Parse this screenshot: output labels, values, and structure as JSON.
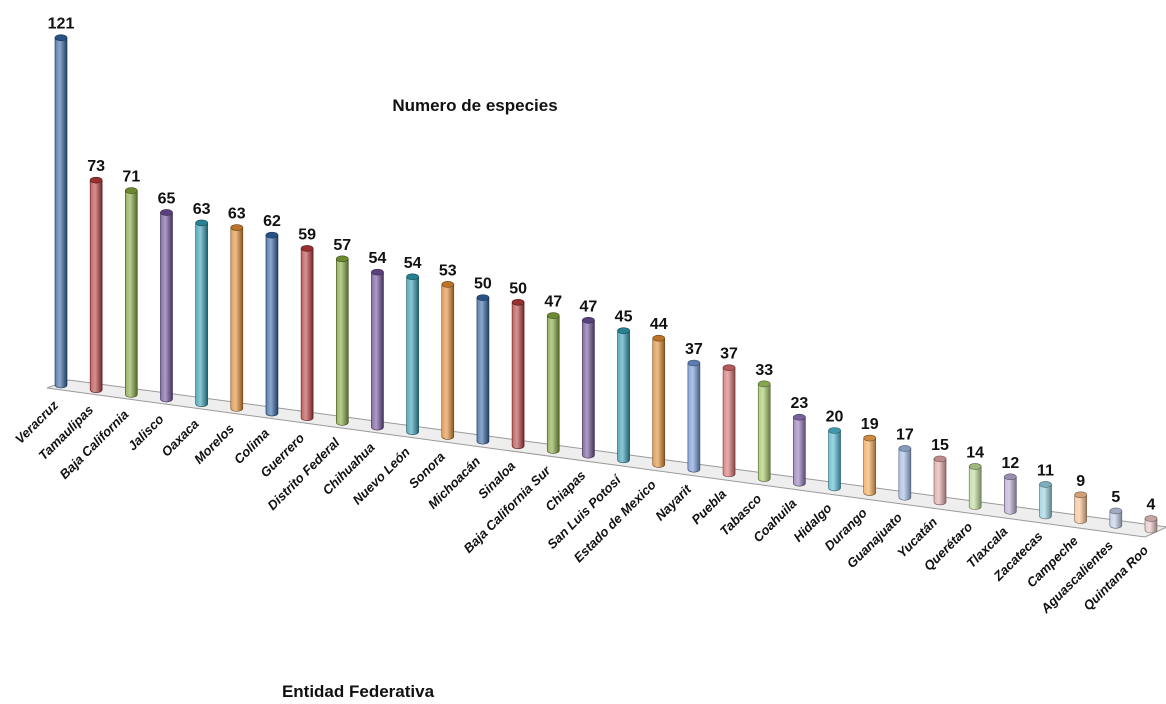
{
  "chart_data": {
    "type": "bar",
    "title": "Numero de especies",
    "xlabel": "Entidad Federativa",
    "ylabel": "",
    "categories": [
      "Veracruz",
      "Tamaulipas",
      "Baja California",
      "Jalisco",
      "Oaxaca",
      "Morelos",
      "Colima",
      "Guerrero",
      "Distrito Federal",
      "Chihuahua",
      "Nuevo León",
      "Sonora",
      "Michoacán",
      "Sinaloa",
      "Baja California Sur",
      "Chiapas",
      "San Luis Potosí",
      "Estado de Mexico",
      "Nayarit",
      "Puebla",
      "Tabasco",
      "Coahuila",
      "Hidalgo",
      "Durango",
      "Guanajuato",
      "Yucatán",
      "Querétaro",
      "Tlaxcala",
      "Zacatecas",
      "Campeche",
      "Aguascalientes",
      "Quintana Roo"
    ],
    "values": [
      121,
      73,
      71,
      65,
      63,
      63,
      62,
      59,
      57,
      54,
      54,
      53,
      50,
      50,
      47,
      47,
      45,
      44,
      37,
      37,
      33,
      23,
      20,
      19,
      17,
      15,
      14,
      12,
      11,
      9,
      5,
      4
    ],
    "colors": [
      "#2f5f9e",
      "#b3393a",
      "#7ea23a",
      "#6a4b93",
      "#2f97ad",
      "#dc8730",
      "#2f5f9e",
      "#b3393a",
      "#7ea23a",
      "#6a4b93",
      "#2f97ad",
      "#dc8730",
      "#2f5f9e",
      "#b3393a",
      "#7ea23a",
      "#6a4b93",
      "#2f97ad",
      "#dc8730",
      "#6e92cf",
      "#d46a6a",
      "#9fc35f",
      "#8e73b5",
      "#4db3cc",
      "#f3a450",
      "#9db7e0",
      "#e0a3a3",
      "#bcd694",
      "#b6a8cf",
      "#94cddc",
      "#f7bd8c",
      "#bcc8e4",
      "#e6c1c1"
    ],
    "data_labels": true,
    "grid": false,
    "legend": "none"
  }
}
